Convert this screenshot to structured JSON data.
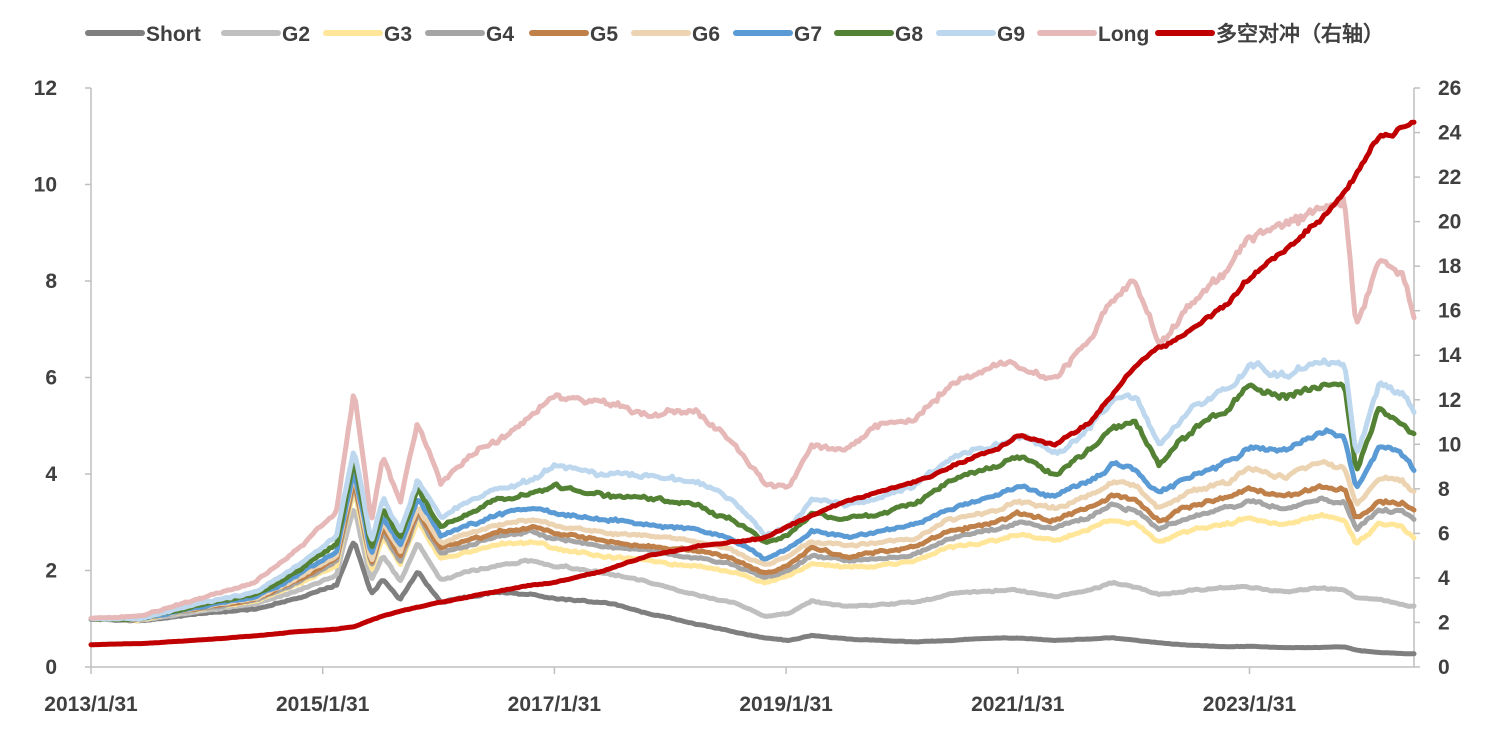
{
  "chart_data": {
    "type": "line",
    "title": "",
    "xlabel": "",
    "ylabel": "",
    "ylabel_right": "",
    "ylim": [
      0,
      12
    ],
    "ylim_right": [
      0,
      26
    ],
    "yticks": [
      "0",
      "2",
      "4",
      "6",
      "8",
      "10",
      "12"
    ],
    "yticks_right": [
      "0",
      "2",
      "4",
      "6",
      "8",
      "10",
      "12",
      "14",
      "16",
      "18",
      "20",
      "22",
      "24",
      "26"
    ],
    "x_tick_labels": [
      "2013/1/31",
      "2015/1/31",
      "2017/1/31",
      "2019/1/31",
      "2021/1/31",
      "2023/1/31"
    ],
    "x_tick_years": [
      2013.08,
      2015.08,
      2017.08,
      2019.08,
      2021.08,
      2023.08
    ],
    "x_range": [
      2013.08,
      2024.5
    ],
    "legend_position": "top",
    "x": [
      2013.08,
      2013.5,
      2014.0,
      2014.5,
      2014.9,
      2015.2,
      2015.35,
      2015.5,
      2015.6,
      2015.75,
      2015.9,
      2016.1,
      2016.3,
      2016.6,
      2016.9,
      2017.08,
      2017.5,
      2017.9,
      2018.3,
      2018.6,
      2018.9,
      2019.1,
      2019.3,
      2019.6,
      2019.9,
      2020.2,
      2020.5,
      2020.9,
      2021.08,
      2021.4,
      2021.7,
      2021.9,
      2022.1,
      2022.3,
      2022.6,
      2022.9,
      2023.08,
      2023.4,
      2023.7,
      2023.9,
      2024.0,
      2024.2,
      2024.4,
      2024.5
    ],
    "series": [
      {
        "name": "Short",
        "color": "#7f7f7f",
        "axis": "left",
        "values": [
          1.0,
          0.95,
          1.1,
          1.2,
          1.45,
          1.7,
          2.6,
          1.5,
          1.8,
          1.4,
          2.0,
          1.35,
          1.45,
          1.55,
          1.5,
          1.4,
          1.35,
          1.1,
          0.9,
          0.75,
          0.6,
          0.55,
          0.65,
          0.58,
          0.55,
          0.52,
          0.55,
          0.6,
          0.6,
          0.55,
          0.58,
          0.6,
          0.55,
          0.5,
          0.45,
          0.42,
          0.43,
          0.4,
          0.4,
          0.42,
          0.35,
          0.3,
          0.28,
          0.27
        ]
      },
      {
        "name": "G2",
        "color": "#bfbfbf",
        "axis": "left",
        "values": [
          1.0,
          0.97,
          1.15,
          1.3,
          1.6,
          1.9,
          3.3,
          1.8,
          2.3,
          1.8,
          2.6,
          1.8,
          1.95,
          2.1,
          2.2,
          2.1,
          1.95,
          1.75,
          1.5,
          1.35,
          1.05,
          1.1,
          1.35,
          1.25,
          1.3,
          1.35,
          1.5,
          1.6,
          1.6,
          1.45,
          1.6,
          1.75,
          1.65,
          1.5,
          1.6,
          1.65,
          1.65,
          1.55,
          1.65,
          1.6,
          1.45,
          1.4,
          1.3,
          1.25
        ]
      },
      {
        "name": "G3",
        "color": "#ffe699",
        "axis": "left",
        "values": [
          1.0,
          0.98,
          1.2,
          1.35,
          1.75,
          2.1,
          3.7,
          2.0,
          2.7,
          2.1,
          3.0,
          2.2,
          2.35,
          2.55,
          2.6,
          2.45,
          2.3,
          2.2,
          2.1,
          2.0,
          1.75,
          1.9,
          2.15,
          2.05,
          2.1,
          2.2,
          2.5,
          2.6,
          2.75,
          2.6,
          2.85,
          3.05,
          2.95,
          2.6,
          2.85,
          3.0,
          3.1,
          2.95,
          3.15,
          3.05,
          2.55,
          2.95,
          2.9,
          2.7
        ]
      },
      {
        "name": "G4",
        "color": "#a5a5a5",
        "axis": "left",
        "values": [
          1.0,
          0.98,
          1.2,
          1.38,
          1.8,
          2.2,
          3.8,
          2.1,
          2.8,
          2.2,
          3.15,
          2.35,
          2.5,
          2.7,
          2.8,
          2.65,
          2.5,
          2.4,
          2.25,
          2.15,
          1.85,
          2.0,
          2.3,
          2.2,
          2.25,
          2.35,
          2.7,
          2.85,
          3.0,
          2.85,
          3.1,
          3.35,
          3.25,
          2.85,
          3.15,
          3.3,
          3.45,
          3.3,
          3.5,
          3.4,
          2.85,
          3.25,
          3.2,
          3.05
        ]
      },
      {
        "name": "G5",
        "color": "#c0804a",
        "axis": "left",
        "values": [
          1.0,
          0.98,
          1.22,
          1.4,
          1.85,
          2.25,
          3.9,
          2.15,
          2.9,
          2.3,
          3.25,
          2.45,
          2.6,
          2.8,
          2.9,
          2.8,
          2.6,
          2.5,
          2.4,
          2.25,
          1.95,
          2.1,
          2.45,
          2.3,
          2.4,
          2.5,
          2.85,
          3.0,
          3.2,
          3.0,
          3.3,
          3.55,
          3.45,
          3.05,
          3.35,
          3.55,
          3.7,
          3.55,
          3.75,
          3.65,
          3.05,
          3.45,
          3.4,
          3.2
        ]
      },
      {
        "name": "G6",
        "color": "#ecd3b2",
        "axis": "left",
        "values": [
          1.0,
          0.98,
          1.23,
          1.42,
          1.9,
          2.3,
          4.0,
          2.2,
          3.0,
          2.4,
          3.35,
          2.55,
          2.75,
          2.95,
          3.05,
          2.95,
          2.8,
          2.7,
          2.6,
          2.45,
          2.1,
          2.3,
          2.6,
          2.5,
          2.6,
          2.7,
          3.05,
          3.25,
          3.45,
          3.25,
          3.55,
          3.85,
          3.75,
          3.3,
          3.65,
          3.85,
          4.1,
          3.95,
          4.25,
          4.15,
          3.35,
          3.95,
          3.85,
          3.65
        ]
      },
      {
        "name": "G7",
        "color": "#5b9bd5",
        "axis": "left",
        "values": [
          1.0,
          0.99,
          1.25,
          1.45,
          1.95,
          2.4,
          4.1,
          2.3,
          3.1,
          2.5,
          3.5,
          2.7,
          2.9,
          3.15,
          3.3,
          3.2,
          3.05,
          2.95,
          2.85,
          2.65,
          2.25,
          2.45,
          2.8,
          2.7,
          2.8,
          2.95,
          3.3,
          3.55,
          3.75,
          3.55,
          3.85,
          4.2,
          4.1,
          3.6,
          4.0,
          4.25,
          4.6,
          4.5,
          4.85,
          4.75,
          3.65,
          4.55,
          4.4,
          4.05
        ]
      },
      {
        "name": "G8",
        "color": "#548235",
        "axis": "left",
        "values": [
          1.0,
          0.99,
          1.27,
          1.5,
          2.05,
          2.55,
          4.3,
          2.45,
          3.3,
          2.65,
          3.7,
          2.9,
          3.15,
          3.45,
          3.6,
          3.75,
          3.55,
          3.5,
          3.35,
          3.1,
          2.55,
          2.75,
          3.15,
          3.05,
          3.2,
          3.4,
          3.85,
          4.15,
          4.35,
          4.0,
          4.45,
          5.0,
          5.1,
          4.2,
          4.95,
          5.35,
          5.85,
          5.6,
          5.9,
          5.8,
          4.1,
          5.35,
          5.05,
          4.8
        ]
      },
      {
        "name": "G9",
        "color": "#bdd7ee",
        "axis": "left",
        "values": [
          1.0,
          1.0,
          1.3,
          1.55,
          2.15,
          2.7,
          4.5,
          2.6,
          3.5,
          2.8,
          3.9,
          3.1,
          3.4,
          3.7,
          3.9,
          4.2,
          4.0,
          3.95,
          3.8,
          3.5,
          2.7,
          2.9,
          3.45,
          3.35,
          3.5,
          3.75,
          4.3,
          4.6,
          4.8,
          4.45,
          4.95,
          5.5,
          5.6,
          4.6,
          5.4,
          5.85,
          6.25,
          6.05,
          6.35,
          6.3,
          4.4,
          5.85,
          5.6,
          5.3
        ]
      },
      {
        "name": "Long",
        "color": "#e6b9b8",
        "axis": "left",
        "values": [
          1.0,
          1.05,
          1.4,
          1.75,
          2.5,
          3.3,
          5.7,
          3.0,
          4.4,
          3.4,
          5.1,
          3.8,
          4.3,
          4.7,
          5.2,
          5.6,
          5.5,
          5.2,
          5.3,
          4.7,
          3.8,
          3.7,
          4.6,
          4.5,
          5.0,
          5.2,
          5.9,
          6.3,
          6.2,
          6.0,
          6.8,
          7.7,
          8.0,
          6.7,
          7.6,
          8.2,
          8.9,
          9.2,
          9.5,
          9.7,
          7.0,
          8.4,
          8.1,
          7.3
        ]
      },
      {
        "name": "多空对冲（右轴）",
        "color": "#c00000",
        "axis": "right",
        "values": [
          1.0,
          1.05,
          1.2,
          1.4,
          1.6,
          1.7,
          1.8,
          2.1,
          2.3,
          2.5,
          2.7,
          2.9,
          3.1,
          3.4,
          3.7,
          3.8,
          4.3,
          5.0,
          5.4,
          5.6,
          5.8,
          6.3,
          6.8,
          7.4,
          7.9,
          8.3,
          9.0,
          9.8,
          10.4,
          10.0,
          11.0,
          12.3,
          13.5,
          14.3,
          15.2,
          16.4,
          17.5,
          18.8,
          20.2,
          21.3,
          22.0,
          23.8,
          24.2,
          24.5
        ]
      }
    ]
  }
}
